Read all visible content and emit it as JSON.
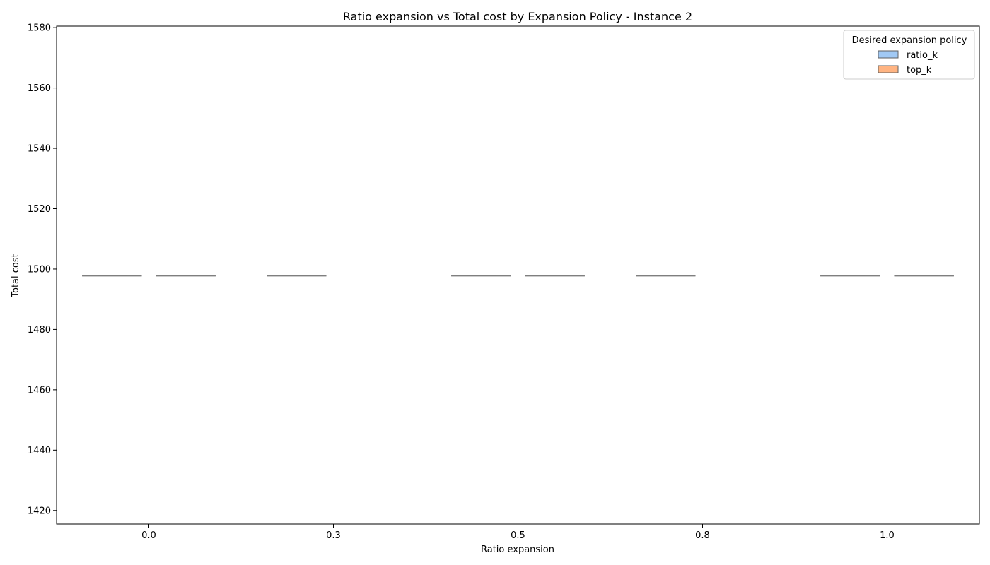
{
  "chart_data": {
    "type": "box",
    "title": "Ratio expansion vs Total cost by Expansion Policy - Instance 2",
    "xlabel": "Ratio expansion",
    "ylabel": "Total cost",
    "ylim": [
      1415.5,
      1580.5
    ],
    "yticks": [
      1420,
      1440,
      1460,
      1480,
      1500,
      1520,
      1540,
      1560,
      1580
    ],
    "categories": [
      "0.0",
      "0.3",
      "0.5",
      "0.8",
      "1.0"
    ],
    "legend": {
      "title": "Desired expansion policy",
      "placement": "top-right"
    },
    "series": [
      {
        "name": "ratio_k",
        "color": "#a1c9f4",
        "values": [
          1497.8,
          1497.8,
          1497.8,
          1497.8,
          1497.8
        ]
      },
      {
        "name": "top_k",
        "color": "#ffb482",
        "values": [
          1497.8,
          null,
          1497.8,
          null,
          1497.8
        ]
      }
    ],
    "box_edge_color": "#7f7f7f"
  }
}
